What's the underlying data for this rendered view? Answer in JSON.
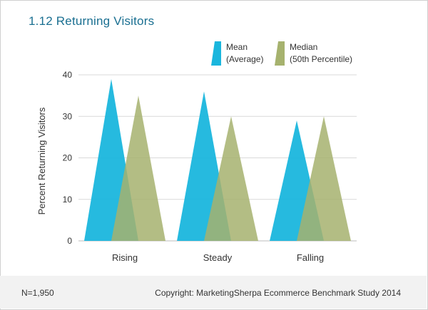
{
  "header": {
    "title": "1.12 Returning Visitors"
  },
  "footer": {
    "sample": "N=1,950",
    "copyright": "Copyright: MarketingSherpa Ecommerce Benchmark Study 2014"
  },
  "chart_data": {
    "type": "bar",
    "title": "1.12 Returning Visitors",
    "xlabel": "",
    "ylabel": "Percent Returning Visitors",
    "categories": [
      "Rising",
      "Steady",
      "Falling"
    ],
    "ylim": [
      0,
      40
    ],
    "yticks": [
      0,
      10,
      20,
      30,
      40
    ],
    "grid": true,
    "legend_position": "top-right",
    "series": [
      {
        "name": "Mean\n(Average)",
        "legend_lines": [
          "Mean",
          "(Average)"
        ],
        "color": "#1ab6dd",
        "values": [
          39,
          36,
          29
        ]
      },
      {
        "name": "Median\n(50th Percentile)",
        "legend_lines": [
          "Median",
          "(50th Percentile)"
        ],
        "color": "#a6b26e",
        "values": [
          35,
          30,
          30
        ]
      }
    ]
  }
}
